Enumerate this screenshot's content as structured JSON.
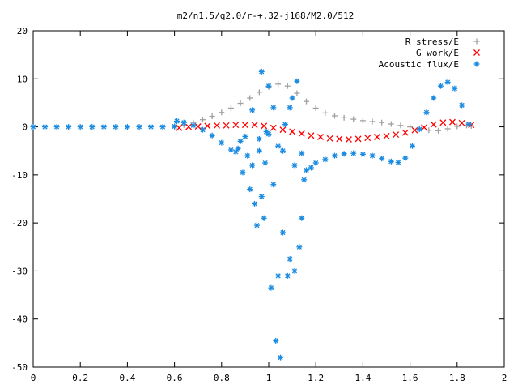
{
  "chart_data": {
    "type": "scatter",
    "title": "m2/n1.5/q2.0/r-+.32-j168/M2.0/512",
    "xlabel": "",
    "ylabel": "",
    "xlim": [
      0,
      2
    ],
    "ylim": [
      -50,
      20
    ],
    "x_ticks": [
      "0",
      "0.2",
      "0.4",
      "0.6",
      "0.8",
      "1",
      "1.2",
      "1.4",
      "1.6",
      "1.8",
      "2"
    ],
    "y_ticks": [
      "20",
      "10",
      "0",
      "-10",
      "-20",
      "-30",
      "-40",
      "-50"
    ],
    "grid": false,
    "legend_position": "top-right",
    "series": [
      {
        "name": "R stress/E",
        "marker": "+",
        "color": "#a0a0a0",
        "points": [
          [
            0.6,
            0.0
          ],
          [
            0.64,
            0.4
          ],
          [
            0.68,
            0.9
          ],
          [
            0.72,
            1.5
          ],
          [
            0.76,
            2.2
          ],
          [
            0.8,
            3.0
          ],
          [
            0.84,
            3.9
          ],
          [
            0.88,
            4.9
          ],
          [
            0.92,
            6.0
          ],
          [
            0.96,
            7.2
          ],
          [
            1.0,
            8.3
          ],
          [
            1.04,
            8.9
          ],
          [
            1.08,
            8.5
          ],
          [
            1.12,
            7.0
          ],
          [
            1.16,
            5.3
          ],
          [
            1.2,
            3.9
          ],
          [
            1.24,
            2.9
          ],
          [
            1.28,
            2.3
          ],
          [
            1.32,
            1.9
          ],
          [
            1.36,
            1.6
          ],
          [
            1.4,
            1.3
          ],
          [
            1.44,
            1.1
          ],
          [
            1.48,
            0.9
          ],
          [
            1.52,
            0.6
          ],
          [
            1.56,
            0.3
          ],
          [
            1.6,
            0.0
          ],
          [
            1.64,
            -0.3
          ],
          [
            1.68,
            -0.7
          ],
          [
            1.72,
            -0.8
          ],
          [
            1.76,
            -0.4
          ],
          [
            1.8,
            0.1
          ],
          [
            1.84,
            0.3
          ],
          [
            1.86,
            0.2
          ]
        ]
      },
      {
        "name": "G work/E",
        "marker": "x",
        "color": "#ff0000",
        "points": [
          [
            0.62,
            -0.2
          ],
          [
            0.66,
            0.0
          ],
          [
            0.7,
            0.1
          ],
          [
            0.74,
            0.2
          ],
          [
            0.78,
            0.3
          ],
          [
            0.82,
            0.3
          ],
          [
            0.86,
            0.4
          ],
          [
            0.9,
            0.4
          ],
          [
            0.94,
            0.4
          ],
          [
            0.98,
            0.2
          ],
          [
            1.02,
            -0.2
          ],
          [
            1.06,
            -0.6
          ],
          [
            1.1,
            -1.0
          ],
          [
            1.14,
            -1.4
          ],
          [
            1.18,
            -1.8
          ],
          [
            1.22,
            -2.1
          ],
          [
            1.26,
            -2.4
          ],
          [
            1.3,
            -2.5
          ],
          [
            1.34,
            -2.6
          ],
          [
            1.38,
            -2.5
          ],
          [
            1.42,
            -2.3
          ],
          [
            1.46,
            -2.1
          ],
          [
            1.5,
            -1.9
          ],
          [
            1.54,
            -1.6
          ],
          [
            1.58,
            -1.2
          ],
          [
            1.62,
            -0.7
          ],
          [
            1.66,
            -0.1
          ],
          [
            1.7,
            0.5
          ],
          [
            1.74,
            0.9
          ],
          [
            1.78,
            1.0
          ],
          [
            1.82,
            0.8
          ],
          [
            1.86,
            0.4
          ]
        ]
      },
      {
        "name": "Acoustic flux/E",
        "marker": "*",
        "color": "#1a8be0",
        "points": [
          [
            0.0,
            0.0
          ],
          [
            0.05,
            0.0
          ],
          [
            0.1,
            0.0
          ],
          [
            0.15,
            0.0
          ],
          [
            0.2,
            0.0
          ],
          [
            0.25,
            0.0
          ],
          [
            0.3,
            0.0
          ],
          [
            0.35,
            0.0
          ],
          [
            0.4,
            0.0
          ],
          [
            0.45,
            0.0
          ],
          [
            0.5,
            0.0
          ],
          [
            0.55,
            0.0
          ],
          [
            0.6,
            0.1
          ],
          [
            0.61,
            1.2
          ],
          [
            0.64,
            0.9
          ],
          [
            0.68,
            0.3
          ],
          [
            0.72,
            -0.6
          ],
          [
            0.76,
            -1.8
          ],
          [
            0.8,
            -3.3
          ],
          [
            0.84,
            -4.8
          ],
          [
            0.86,
            -5.2
          ],
          [
            0.87,
            -4.5
          ],
          [
            0.88,
            -3.0
          ],
          [
            0.89,
            -9.5
          ],
          [
            0.9,
            -2.0
          ],
          [
            0.91,
            -6.0
          ],
          [
            0.92,
            -13.0
          ],
          [
            0.93,
            -8.0
          ],
          [
            0.94,
            -16.0
          ],
          [
            0.95,
            -20.5
          ],
          [
            0.96,
            -5.0
          ],
          [
            0.97,
            -14.5
          ],
          [
            0.98,
            -19.0
          ],
          [
            0.99,
            -1.0
          ],
          [
            1.0,
            8.5
          ],
          [
            1.01,
            -33.5
          ],
          [
            1.02,
            4.0
          ],
          [
            1.03,
            -44.5
          ],
          [
            1.04,
            -31.0
          ],
          [
            1.05,
            -48.0
          ],
          [
            1.06,
            -22.0
          ],
          [
            1.07,
            0.5
          ],
          [
            1.08,
            -31.0
          ],
          [
            1.09,
            -27.5
          ],
          [
            1.1,
            6.0
          ],
          [
            1.11,
            -30.0
          ],
          [
            1.12,
            9.5
          ],
          [
            1.13,
            -25.0
          ],
          [
            1.14,
            -19.0
          ],
          [
            1.15,
            -11.0
          ],
          [
            0.93,
            3.5
          ],
          [
            0.96,
            -2.5
          ],
          [
            0.97,
            11.5
          ],
          [
            0.985,
            -7.5
          ],
          [
            1.0,
            -1.5
          ],
          [
            1.02,
            -12.0
          ],
          [
            1.04,
            -4.0
          ],
          [
            1.06,
            -5.0
          ],
          [
            1.09,
            4.0
          ],
          [
            1.11,
            -8.0
          ],
          [
            1.14,
            -5.5
          ],
          [
            1.16,
            -9.0
          ],
          [
            1.18,
            -8.5
          ],
          [
            1.2,
            -7.5
          ],
          [
            1.24,
            -6.8
          ],
          [
            1.28,
            -6.0
          ],
          [
            1.32,
            -5.6
          ],
          [
            1.36,
            -5.5
          ],
          [
            1.4,
            -5.7
          ],
          [
            1.44,
            -6.0
          ],
          [
            1.48,
            -6.6
          ],
          [
            1.52,
            -7.2
          ],
          [
            1.55,
            -7.4
          ],
          [
            1.58,
            -6.5
          ],
          [
            1.61,
            -4.0
          ],
          [
            1.64,
            -0.5
          ],
          [
            1.67,
            3.0
          ],
          [
            1.7,
            6.0
          ],
          [
            1.73,
            8.5
          ],
          [
            1.76,
            9.3
          ],
          [
            1.79,
            8.0
          ],
          [
            1.82,
            4.5
          ],
          [
            1.85,
            0.5
          ]
        ]
      }
    ]
  }
}
